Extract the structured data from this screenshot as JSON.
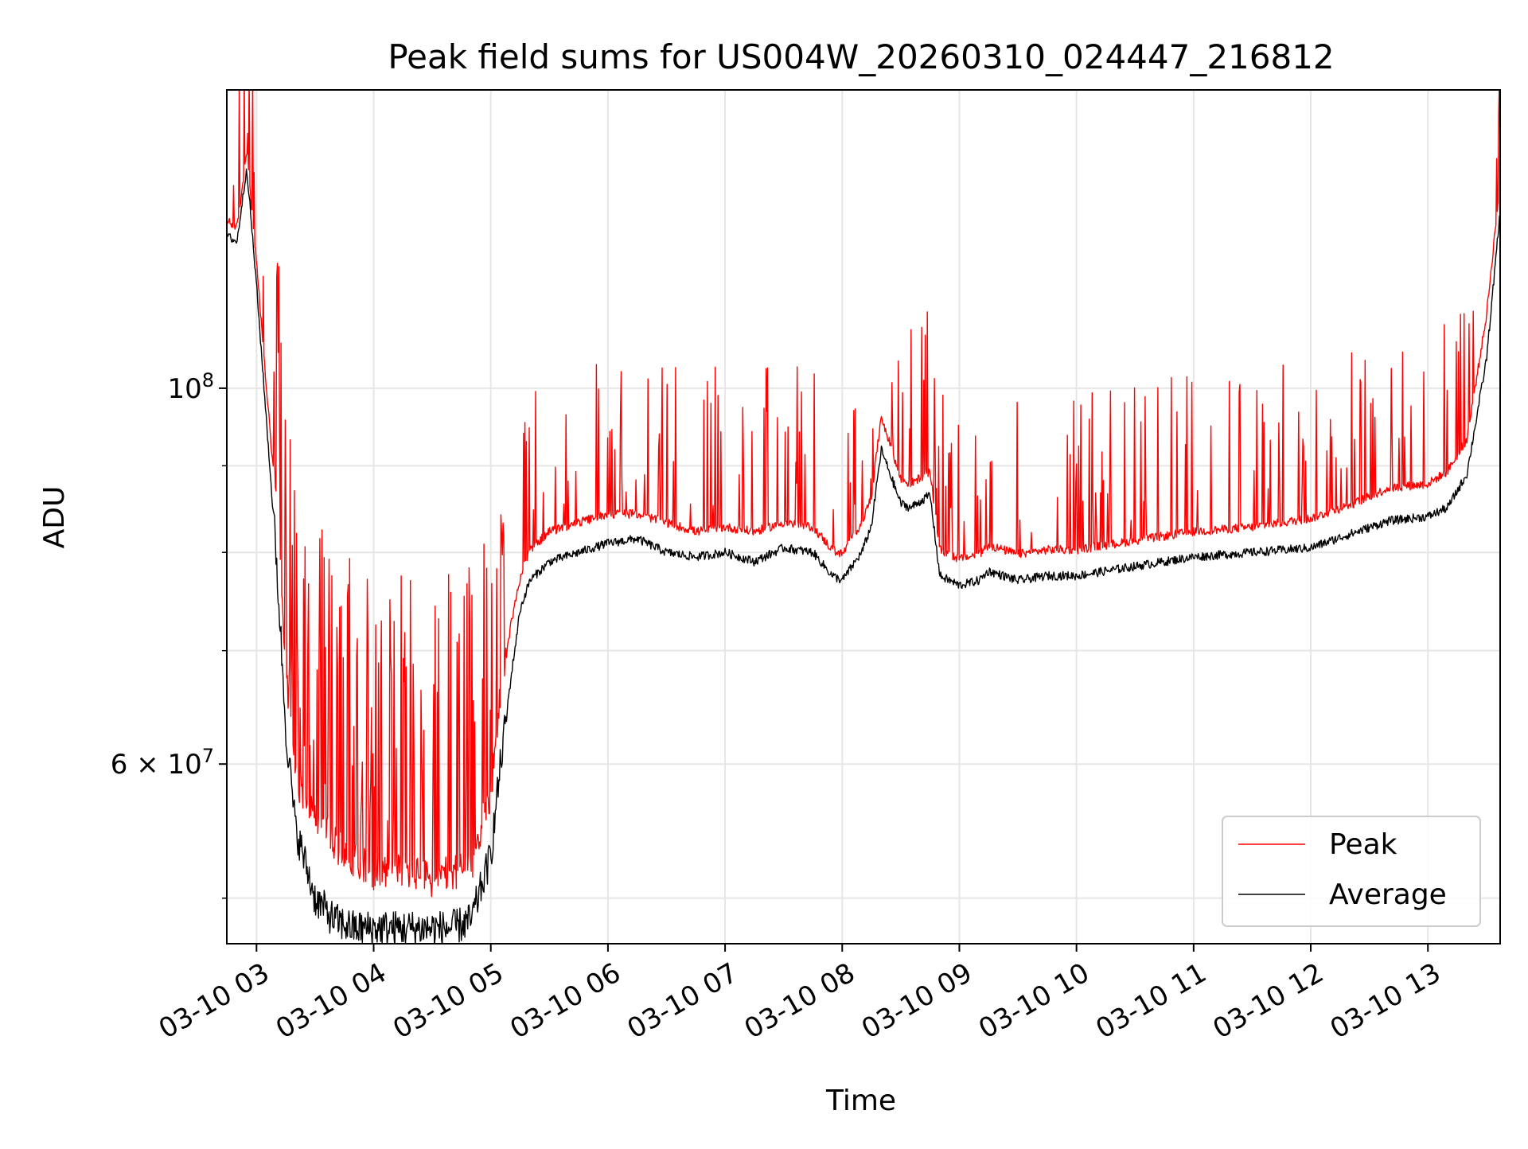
{
  "chart_data": {
    "type": "line",
    "title": "Peak field sums for US004W_20260310_024447_216812",
    "xlabel": "Time",
    "ylabel": "ADU",
    "yscale": "log",
    "xlim": [
      "2026-03-10 02:44:47",
      "2026-03-10 13:37:00"
    ],
    "ylim": [
      47000000,
      150000000
    ],
    "x_tick_labels": [
      "03-10 03",
      "03-10 04",
      "03-10 05",
      "03-10 06",
      "03-10 07",
      "03-10 08",
      "03-10 09",
      "03-10 10",
      "03-10 11",
      "03-10 12",
      "03-10 13"
    ],
    "y_tick_labels": [
      {
        "value": 100000000,
        "label": "10",
        "exp": "8"
      },
      {
        "value": 60000000,
        "label": "6 × 10",
        "exp": "7"
      }
    ],
    "y_minor_ticks": [
      50000000,
      70000000,
      80000000,
      90000000
    ],
    "grid": true,
    "legend_position": "bottom-right",
    "series": [
      {
        "name": "Peak",
        "color": "#ff0000",
        "spike_level": "upper envelope of frequent spikes",
        "x": [
          "02:45",
          "02:50",
          "02:55",
          "03:00",
          "03:05",
          "03:10",
          "03:15",
          "03:20",
          "03:30",
          "03:40",
          "03:50",
          "04:00",
          "04:10",
          "04:20",
          "04:30",
          "04:40",
          "04:50",
          "05:00",
          "05:05",
          "05:10",
          "05:15",
          "05:20",
          "05:30",
          "05:45",
          "06:00",
          "06:15",
          "06:30",
          "06:45",
          "07:00",
          "07:15",
          "07:30",
          "07:45",
          "07:55",
          "08:00",
          "08:10",
          "08:15",
          "08:20",
          "08:30",
          "08:35",
          "08:45",
          "08:50",
          "09:00",
          "09:10",
          "09:15",
          "09:30",
          "09:45",
          "10:00",
          "10:30",
          "11:00",
          "11:30",
          "12:00",
          "12:20",
          "12:40",
          "13:00",
          "13:10",
          "13:20",
          "13:30",
          "13:37"
        ],
        "values": [
          125000000,
          124000000,
          137000000,
          118000000,
          100000000,
          85000000,
          67000000,
          58000000,
          55000000,
          53000000,
          52000000,
          51000000,
          51500000,
          51000000,
          50500000,
          51000000,
          51500000,
          57000000,
          65000000,
          72000000,
          77000000,
          80000000,
          82000000,
          83000000,
          84000000,
          84000000,
          83000000,
          82000000,
          82500000,
          82000000,
          83000000,
          82500000,
          80000000,
          79500000,
          83000000,
          86000000,
          96000000,
          88000000,
          87500000,
          89000000,
          80000000,
          79000000,
          79500000,
          80500000,
          79500000,
          80000000,
          80000000,
          81000000,
          82000000,
          82500000,
          83500000,
          85000000,
          87000000,
          87500000,
          89000000,
          93000000,
          110000000,
          132000000
        ]
      },
      {
        "name": "Average",
        "color": "#000000",
        "x": [
          "02:45",
          "02:50",
          "02:55",
          "03:00",
          "03:05",
          "03:10",
          "03:15",
          "03:20",
          "03:30",
          "03:40",
          "03:50",
          "04:00",
          "04:10",
          "04:20",
          "04:30",
          "04:40",
          "04:50",
          "05:00",
          "05:05",
          "05:10",
          "05:15",
          "05:20",
          "05:30",
          "05:45",
          "06:00",
          "06:15",
          "06:30",
          "06:45",
          "07:00",
          "07:15",
          "07:30",
          "07:45",
          "07:55",
          "08:00",
          "08:10",
          "08:15",
          "08:20",
          "08:30",
          "08:35",
          "08:45",
          "08:50",
          "09:00",
          "09:10",
          "09:15",
          "09:30",
          "09:45",
          "10:00",
          "10:30",
          "11:00",
          "11:30",
          "12:00",
          "12:20",
          "12:40",
          "13:00",
          "13:10",
          "13:20",
          "13:30",
          "13:37"
        ],
        "values": [
          123000000,
          122000000,
          135000000,
          115000000,
          96000000,
          80000000,
          63000000,
          55000000,
          50000000,
          48500000,
          48000000,
          48000000,
          48000000,
          48000000,
          48000000,
          48000000,
          48500000,
          53000000,
          60000000,
          67000000,
          74000000,
          77000000,
          79000000,
          80000000,
          81000000,
          81500000,
          80000000,
          79500000,
          80000000,
          79000000,
          80500000,
          80000000,
          77500000,
          77000000,
          80000000,
          83000000,
          92000000,
          85500000,
          85000000,
          86500000,
          77500000,
          76500000,
          77000000,
          78000000,
          77000000,
          77500000,
          77500000,
          78500000,
          79500000,
          80000000,
          80500000,
          82000000,
          83500000,
          84000000,
          85000000,
          89000000,
          104000000,
          127000000
        ]
      }
    ]
  }
}
